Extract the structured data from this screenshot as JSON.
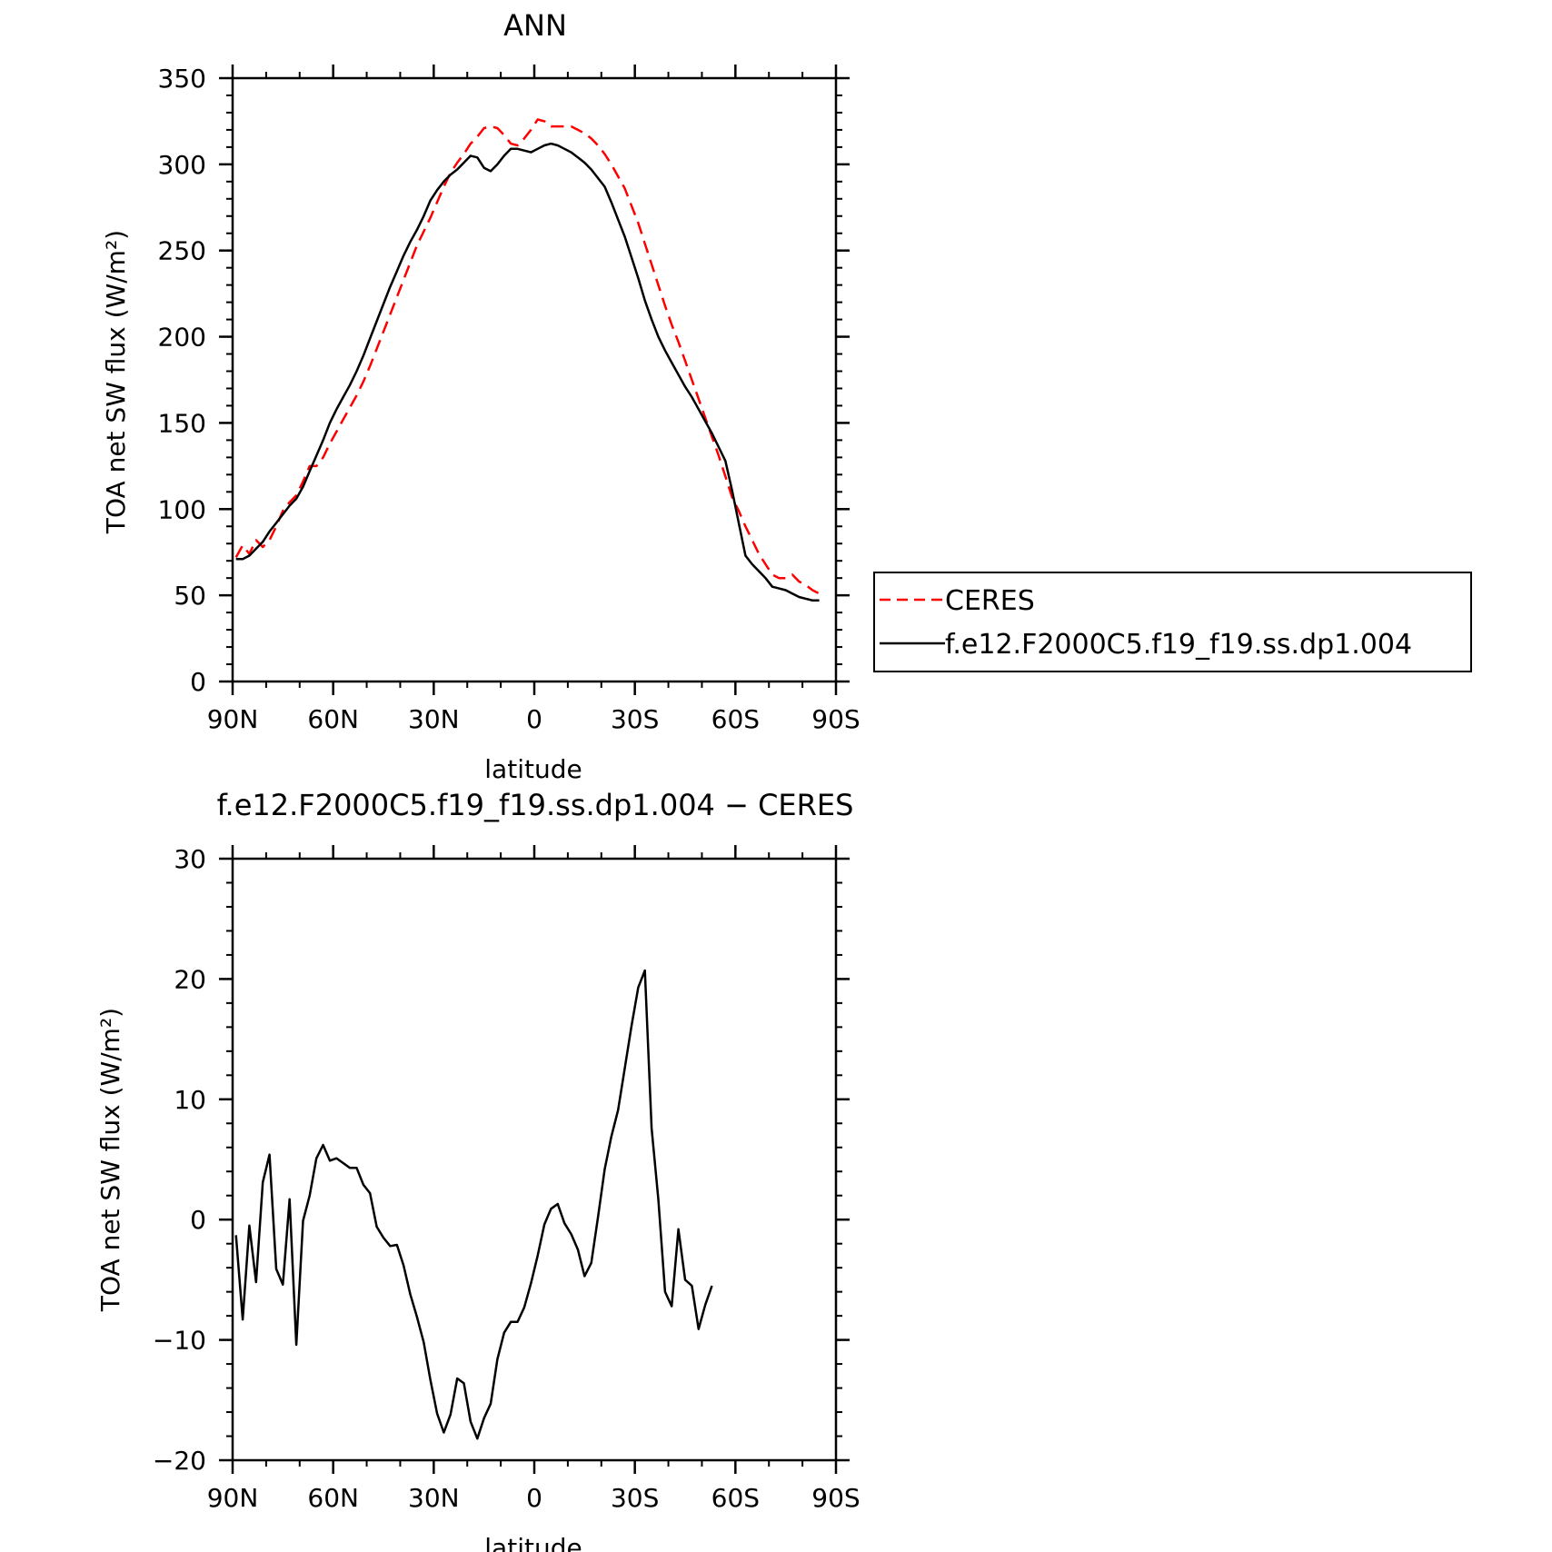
{
  "chart_data": [
    {
      "type": "line",
      "title": "ANN",
      "xlabel": "latitude",
      "ylabel": "TOA net SW flux (W/m²)",
      "xlim": [
        90,
        -90
      ],
      "ylim": [
        0,
        350
      ],
      "x_ticks": [
        90,
        60,
        30,
        0,
        -30,
        -60,
        -90
      ],
      "x_tick_labels": [
        "90N",
        "60N",
        "30N",
        "0",
        "30S",
        "60S",
        "90S"
      ],
      "y_ticks": [
        0,
        50,
        100,
        150,
        200,
        250,
        300,
        350
      ],
      "y_tick_labels": [
        "0",
        "50",
        "100",
        "150",
        "200",
        "250",
        "300",
        "350"
      ],
      "legend_position": "right",
      "series": [
        {
          "name": "CERES",
          "color": "#ff0000",
          "style": "dashed",
          "points": [
            [
              89,
              72
            ],
            [
              87,
              79
            ],
            [
              85,
              74
            ],
            [
              83,
              82
            ],
            [
              81,
              78
            ],
            [
              79,
              82
            ],
            [
              77,
              90
            ],
            [
              75,
              99
            ],
            [
              73,
              104
            ],
            [
              71,
              108
            ],
            [
              69,
              116
            ],
            [
              67,
              125
            ],
            [
              65,
              125
            ],
            [
              63,
              130
            ],
            [
              61,
              138
            ],
            [
              59,
              145
            ],
            [
              57,
              152
            ],
            [
              55,
              159
            ],
            [
              53,
              166
            ],
            [
              51,
              174
            ],
            [
              49,
              183
            ],
            [
              47,
              193
            ],
            [
              45,
              203
            ],
            [
              43,
              213
            ],
            [
              41,
              223
            ],
            [
              39,
              233
            ],
            [
              37,
              243
            ],
            [
              35,
              253
            ],
            [
              33,
              261
            ],
            [
              31,
              269
            ],
            [
              29,
              278
            ],
            [
              27,
              287
            ],
            [
              25,
              295
            ],
            [
              23,
              301
            ],
            [
              21,
              306
            ],
            [
              19,
              312
            ],
            [
              17,
              316
            ],
            [
              15,
              321
            ],
            [
              13,
              322
            ],
            [
              11,
              321
            ],
            [
              9,
              317
            ],
            [
              7,
              312
            ],
            [
              5,
              311
            ],
            [
              3,
              315
            ],
            [
              1,
              320
            ],
            [
              -1,
              326
            ],
            [
              -3,
              325
            ],
            [
              -5,
              322
            ],
            [
              -7,
              322
            ],
            [
              -9,
              322
            ],
            [
              -11,
              322
            ],
            [
              -13,
              320
            ],
            [
              -15,
              318
            ],
            [
              -17,
              315
            ],
            [
              -19,
              311
            ],
            [
              -21,
              306
            ],
            [
              -23,
              300
            ],
            [
              -25,
              293
            ],
            [
              -27,
              286
            ],
            [
              -29,
              276
            ],
            [
              -31,
              266
            ],
            [
              -33,
              254
            ],
            [
              -35,
              242
            ],
            [
              -37,
              230
            ],
            [
              -39,
              218
            ],
            [
              -41,
              207
            ],
            [
              -43,
              197
            ],
            [
              -45,
              186
            ],
            [
              -47,
              175
            ],
            [
              -49,
              164
            ],
            [
              -51,
              153
            ],
            [
              -53,
              142
            ],
            [
              -55,
              131
            ],
            [
              -57,
              119
            ],
            [
              -59,
              107
            ],
            [
              -61,
              99
            ],
            [
              -63,
              90
            ],
            [
              -65,
              82
            ],
            [
              -67,
              74
            ],
            [
              -69,
              68
            ],
            [
              -71,
              62
            ],
            [
              -73,
              60
            ],
            [
              -75,
              60
            ],
            [
              -77,
              62
            ],
            [
              -79,
              58
            ],
            [
              -81,
              56
            ],
            [
              -83,
              53
            ],
            [
              -85,
              51
            ]
          ]
        },
        {
          "name": "f.e12.F2000C5.f19_f19.ss.dp1.004",
          "color": "#000000",
          "style": "solid",
          "points": [
            [
              89,
              71
            ],
            [
              87,
              71
            ],
            [
              85,
              73
            ],
            [
              83,
              77
            ],
            [
              81,
              81
            ],
            [
              79,
              87
            ],
            [
              77,
              92
            ],
            [
              75,
              97
            ],
            [
              73,
              102
            ],
            [
              71,
              106
            ],
            [
              69,
              113
            ],
            [
              67,
              122
            ],
            [
              65,
              131
            ],
            [
              63,
              140
            ],
            [
              61,
              150
            ],
            [
              59,
              158
            ],
            [
              57,
              165
            ],
            [
              55,
              172
            ],
            [
              53,
              180
            ],
            [
              51,
              189
            ],
            [
              49,
              199
            ],
            [
              47,
              209
            ],
            [
              45,
              219
            ],
            [
              43,
              229
            ],
            [
              41,
              238
            ],
            [
              39,
              247
            ],
            [
              37,
              255
            ],
            [
              35,
              262
            ],
            [
              33,
              270
            ],
            [
              31,
              279
            ],
            [
              29,
              285
            ],
            [
              27,
              290
            ],
            [
              25,
              294
            ],
            [
              23,
              297
            ],
            [
              21,
              301
            ],
            [
              19,
              305
            ],
            [
              17,
              304
            ],
            [
              15,
              298
            ],
            [
              13,
              296
            ],
            [
              11,
              300
            ],
            [
              9,
              305
            ],
            [
              7,
              309
            ],
            [
              5,
              309
            ],
            [
              3,
              308
            ],
            [
              1,
              307
            ],
            [
              -1,
              309
            ],
            [
              -3,
              311
            ],
            [
              -5,
              312
            ],
            [
              -7,
              311
            ],
            [
              -9,
              309
            ],
            [
              -11,
              307
            ],
            [
              -13,
              304
            ],
            [
              -15,
              301
            ],
            [
              -17,
              297
            ],
            [
              -19,
              292
            ],
            [
              -21,
              287
            ],
            [
              -23,
              278
            ],
            [
              -25,
              268
            ],
            [
              -27,
              258
            ],
            [
              -29,
              246
            ],
            [
              -31,
              234
            ],
            [
              -33,
              221
            ],
            [
              -35,
              210
            ],
            [
              -37,
              200
            ],
            [
              -39,
              192
            ],
            [
              -41,
              185
            ],
            [
              -43,
              178
            ],
            [
              -45,
              171
            ],
            [
              -47,
              165
            ],
            [
              -49,
              158
            ],
            [
              -51,
              151
            ],
            [
              -53,
              144
            ],
            [
              -55,
              136
            ],
            [
              -57,
              128
            ],
            [
              -59,
              111
            ],
            [
              -61,
              92
            ],
            [
              -63,
              73
            ],
            [
              -65,
              68
            ],
            [
              -67,
              64
            ],
            [
              -69,
              60
            ],
            [
              -71,
              55
            ],
            [
              -73,
              54
            ],
            [
              -75,
              53
            ],
            [
              -77,
              51
            ],
            [
              -79,
              49
            ],
            [
              -81,
              48
            ],
            [
              -83,
              47
            ],
            [
              -85,
              47
            ]
          ]
        }
      ]
    },
    {
      "type": "line",
      "title": "f.e12.F2000C5.f19_f19.ss.dp1.004 − CERES",
      "xlabel": "latitude",
      "ylabel": "TOA net SW flux (W/m²)",
      "xlim": [
        90,
        -90
      ],
      "ylim": [
        -20,
        30
      ],
      "x_ticks": [
        90,
        60,
        30,
        0,
        -30,
        -60,
        -90
      ],
      "x_tick_labels": [
        "90N",
        "60N",
        "30N",
        "0",
        "30S",
        "60S",
        "90S"
      ],
      "y_ticks": [
        -20,
        -10,
        0,
        10,
        20,
        30
      ],
      "y_tick_labels": [
        "−20",
        "−10",
        "0",
        "10",
        "20",
        "30"
      ],
      "series": [
        {
          "color": "#000000",
          "style": "solid",
          "points": [
            [
              89,
              -1.3
            ],
            [
              87,
              -8.3
            ],
            [
              85,
              -0.5
            ],
            [
              83,
              -5.2
            ],
            [
              81,
              3.1
            ],
            [
              79,
              5.4
            ],
            [
              77,
              -4.1
            ],
            [
              75,
              -5.4
            ],
            [
              73,
              1.7
            ],
            [
              71,
              -10.4
            ],
            [
              69,
              -0.1
            ],
            [
              67,
              2.0
            ],
            [
              65,
              5.1
            ],
            [
              63,
              6.2
            ],
            [
              61,
              4.9
            ],
            [
              59,
              5.1
            ],
            [
              57,
              4.7
            ],
            [
              55,
              4.3
            ],
            [
              53,
              4.3
            ],
            [
              51,
              2.9
            ],
            [
              49,
              2.2
            ],
            [
              47,
              -0.6
            ],
            [
              45,
              -1.5
            ],
            [
              43,
              -2.2
            ],
            [
              41,
              -2.1
            ],
            [
              39,
              -3.8
            ],
            [
              37,
              -6.2
            ],
            [
              35,
              -8.1
            ],
            [
              33,
              -10.2
            ],
            [
              31,
              -13.3
            ],
            [
              29,
              -16.1
            ],
            [
              27,
              -17.7
            ],
            [
              25,
              -16.2
            ],
            [
              23,
              -13.2
            ],
            [
              21,
              -13.6
            ],
            [
              19,
              -16.8
            ],
            [
              17,
              -18.2
            ],
            [
              15,
              -16.5
            ],
            [
              13,
              -15.3
            ],
            [
              11,
              -11.6
            ],
            [
              9,
              -9.4
            ],
            [
              7,
              -8.5
            ],
            [
              5,
              -8.5
            ],
            [
              3,
              -7.3
            ],
            [
              1,
              -5.3
            ],
            [
              -1,
              -3.0
            ],
            [
              -3,
              -0.4
            ],
            [
              -5,
              0.9
            ],
            [
              -7,
              1.3
            ],
            [
              -9,
              -0.3
            ],
            [
              -11,
              -1.2
            ],
            [
              -13,
              -2.5
            ],
            [
              -15,
              -4.7
            ],
            [
              -17,
              -3.6
            ],
            [
              -19,
              0.2
            ],
            [
              -21,
              4.2
            ],
            [
              -23,
              6.9
            ],
            [
              -25,
              9.1
            ],
            [
              -27,
              12.6
            ],
            [
              -29,
              16.1
            ],
            [
              -31,
              19.3
            ],
            [
              -33,
              20.7
            ],
            [
              -35,
              7.6
            ],
            [
              -37,
              1.7
            ],
            [
              -39,
              -6.0
            ],
            [
              -41,
              -7.2
            ],
            [
              -43,
              -0.8
            ],
            [
              -45,
              -5.0
            ],
            [
              -47,
              -5.5
            ],
            [
              -49,
              -9.1
            ],
            [
              -51,
              -7.1
            ],
            [
              -53,
              -5.5
            ]
          ]
        }
      ]
    }
  ]
}
